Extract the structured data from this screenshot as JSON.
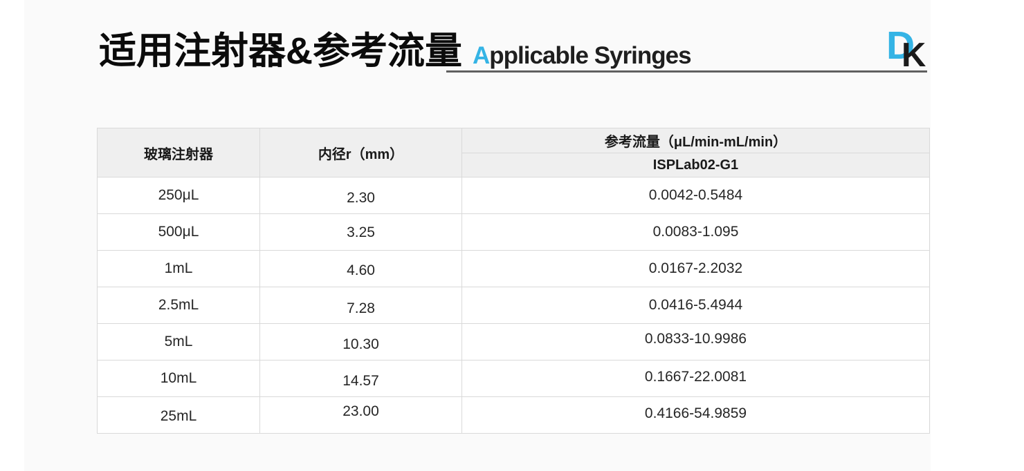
{
  "colors": {
    "accent": "#35b4e5",
    "header_bg": "#efefef",
    "border": "#d9d9d9",
    "card_bg": "#fafafa"
  },
  "header": {
    "title_cn": "适用注射器&参考流量",
    "title_en_first": "A",
    "title_en_rest": "pplicable Syringes",
    "logo_d": "D",
    "logo_k": "K"
  },
  "table": {
    "headers": {
      "syringe": "玻璃注射器",
      "diameter": "内径r（mm）",
      "flow_group": "参考流量（μL/min-mL/min）",
      "flow_model": "ISPLab02-G1"
    },
    "rows": [
      {
        "syringe": "250μL",
        "diameter": "2.30",
        "flow": "0.0042-0.5484"
      },
      {
        "syringe": "500μL",
        "diameter": "3.25",
        "flow": "0.0083-1.095"
      },
      {
        "syringe": "1mL",
        "diameter": "4.60",
        "flow": "0.0167-2.2032"
      },
      {
        "syringe": "2.5mL",
        "diameter": "7.28",
        "flow": "0.0416-5.4944"
      },
      {
        "syringe": "5mL",
        "diameter": "10.30",
        "flow": "0.0833-10.9986"
      },
      {
        "syringe": "10mL",
        "diameter": "14.57",
        "flow": "0.1667-22.0081"
      },
      {
        "syringe": "25mL",
        "diameter": "23.00",
        "flow": "0.4166-54.9859"
      }
    ]
  }
}
